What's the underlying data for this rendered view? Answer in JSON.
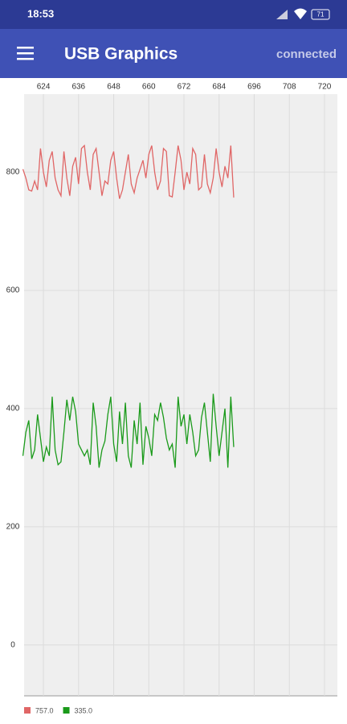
{
  "status_bar": {
    "time": "18:53",
    "battery": "71"
  },
  "app_bar": {
    "title": "USB Graphics",
    "status": "connected"
  },
  "chart_data": {
    "type": "line",
    "x": [
      617,
      618,
      619,
      620,
      621,
      622,
      623,
      624,
      625,
      626,
      627,
      628,
      629,
      630,
      631,
      632,
      633,
      634,
      635,
      636,
      637,
      638,
      639,
      640,
      641,
      642,
      643,
      644,
      645,
      646,
      647,
      648,
      649,
      650,
      651,
      652,
      653,
      654,
      655,
      656,
      657,
      658,
      659,
      660,
      661,
      662,
      663,
      664,
      665,
      666,
      667,
      668,
      669,
      670,
      671,
      672,
      673,
      674,
      675,
      676,
      677,
      678,
      679,
      680,
      681,
      682,
      683,
      684,
      685,
      686,
      687,
      688,
      689
    ],
    "series": [
      {
        "name": "757.0",
        "color": "#e06666",
        "values": [
          805,
          790,
          770,
          768,
          785,
          770,
          840,
          800,
          775,
          820,
          835,
          790,
          770,
          760,
          835,
          790,
          760,
          810,
          825,
          780,
          840,
          845,
          800,
          770,
          830,
          840,
          800,
          760,
          785,
          780,
          820,
          835,
          790,
          755,
          770,
          800,
          830,
          780,
          765,
          790,
          805,
          820,
          790,
          830,
          845,
          800,
          770,
          785,
          840,
          835,
          760,
          758,
          800,
          845,
          820,
          770,
          800,
          780,
          840,
          830,
          770,
          775,
          830,
          780,
          765,
          790,
          840,
          800,
          775,
          810,
          790,
          845,
          757
        ]
      },
      {
        "name": "335.0",
        "color": "#1a9a1a",
        "values": [
          320,
          360,
          380,
          315,
          330,
          390,
          350,
          310,
          335,
          320,
          420,
          330,
          305,
          310,
          360,
          415,
          380,
          420,
          395,
          340,
          330,
          320,
          330,
          305,
          410,
          370,
          300,
          330,
          345,
          390,
          420,
          340,
          310,
          395,
          340,
          410,
          320,
          300,
          380,
          340,
          410,
          305,
          370,
          350,
          320,
          390,
          380,
          410,
          385,
          350,
          330,
          340,
          300,
          420,
          370,
          390,
          340,
          390,
          360,
          320,
          330,
          385,
          410,
          360,
          310,
          425,
          370,
          320,
          360,
          400,
          300,
          420,
          335
        ]
      }
    ],
    "xlim": [
      617.4,
      724.4
    ],
    "xticks": [
      624,
      636,
      648,
      660,
      672,
      684,
      696,
      708,
      720
    ],
    "ylim": [
      -86,
      932
    ],
    "yticks": [
      0,
      200,
      400,
      600,
      800
    ],
    "grid": true,
    "legend": "bottom-left"
  }
}
